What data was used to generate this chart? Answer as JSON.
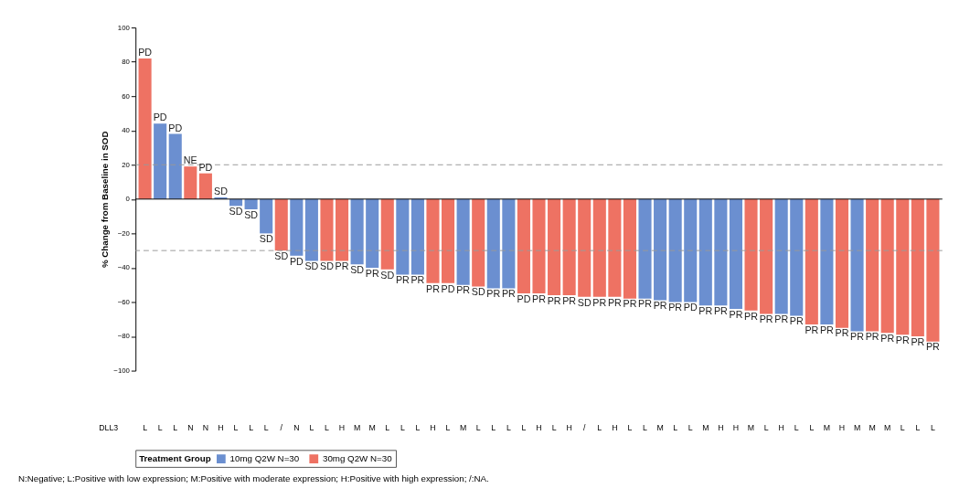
{
  "chart_data": {
    "type": "bar",
    "ylabel": "% Change from Baseline in SOD",
    "xlabel": "DLL3",
    "legend_title": "Treatment Group",
    "legend": "bottom",
    "grid": false,
    "categories": [
      "L",
      "L",
      "L",
      "N",
      "N",
      "H",
      "L",
      "L",
      "L",
      "/",
      "N",
      "L",
      "L",
      "H",
      "M",
      "M",
      "L",
      "L",
      "L",
      "H",
      "L",
      "M",
      "L",
      "L",
      "L",
      "L",
      "H",
      "L",
      "H",
      "/",
      "L",
      "H",
      "L",
      "L",
      "M",
      "L",
      "L",
      "M",
      "H",
      "H",
      "M",
      "L",
      "H",
      "L",
      "L",
      "M",
      "H",
      "M",
      "M",
      "M",
      "L",
      "L",
      "L"
    ],
    "series": [
      {
        "name": "10mg Q2W N=30",
        "color": "#6b8fd0",
        "values": [
          null,
          44,
          38,
          null,
          null,
          1,
          -4,
          -6,
          -20,
          null,
          -33,
          -36,
          null,
          null,
          -38,
          -40,
          null,
          -44,
          -44,
          null,
          null,
          -50,
          null,
          -52,
          -52,
          null,
          null,
          null,
          null,
          null,
          null,
          null,
          null,
          -58,
          -59,
          -60,
          -60,
          -62,
          -62,
          -64,
          null,
          null,
          -67,
          -68,
          null,
          -73,
          null,
          -77,
          null,
          null,
          null,
          null,
          null
        ],
        "value_labels": [
          null,
          "PD",
          "PD",
          null,
          null,
          "SD",
          "SD",
          "SD",
          "SD",
          null,
          "PD",
          "SD",
          null,
          null,
          "SD",
          "PR",
          null,
          "PR",
          "PR",
          null,
          null,
          "PR",
          null,
          "PR",
          "PR",
          null,
          null,
          null,
          null,
          null,
          null,
          null,
          null,
          "PR",
          "PR",
          "PR",
          "PD",
          "PR",
          "PR",
          "PR",
          null,
          null,
          "PR",
          "PR",
          null,
          "PR",
          null,
          "PR",
          null,
          null,
          null,
          null,
          null
        ]
      },
      {
        "name": "30mg Q2W N=30",
        "color": "#ee7263",
        "values": [
          82,
          null,
          null,
          19,
          15,
          null,
          null,
          null,
          null,
          -30,
          null,
          null,
          -36,
          -36,
          null,
          null,
          -41,
          null,
          null,
          -49,
          -49,
          null,
          -51,
          null,
          null,
          -55,
          -55,
          -56,
          -56,
          -57,
          -57,
          -57,
          -58,
          null,
          null,
          null,
          null,
          null,
          null,
          null,
          -65,
          -67,
          null,
          null,
          -73,
          null,
          -75,
          null,
          -77,
          -78,
          -79,
          -80,
          -83
        ],
        "value_labels": [
          "PD",
          null,
          null,
          "NE",
          "PD",
          null,
          null,
          null,
          null,
          "SD",
          null,
          null,
          "SD",
          "PR",
          null,
          null,
          "SD",
          null,
          null,
          "PR",
          "PD",
          null,
          "SD",
          null,
          null,
          "PD",
          "PR",
          "PR",
          "PR",
          "SD",
          "PR",
          "PR",
          "PR",
          null,
          null,
          null,
          null,
          null,
          null,
          null,
          "PR",
          "PR",
          null,
          null,
          "PR",
          null,
          "PR",
          null,
          "PR",
          "PR",
          "PR",
          "PR",
          "PR"
        ]
      }
    ],
    "ylim": [
      -100,
      100
    ],
    "yticks": [
      -100,
      -80,
      -60,
      -40,
      -20,
      0,
      20,
      40,
      60,
      80,
      100
    ],
    "ref_lines": [
      {
        "axis": "y",
        "value": 20,
        "color": "#999999",
        "line_style": "dashed"
      },
      {
        "axis": "y",
        "value": -30,
        "color": "#999999",
        "line_style": "dashed"
      },
      {
        "axis": "y",
        "value": 0,
        "color": "#000000",
        "line_style": "solid"
      }
    ],
    "annotations": [
      "N:Negative; L:Positive with low expression; M:Positive with moderate expression; H:Positive with high expression; /:NA."
    ]
  }
}
